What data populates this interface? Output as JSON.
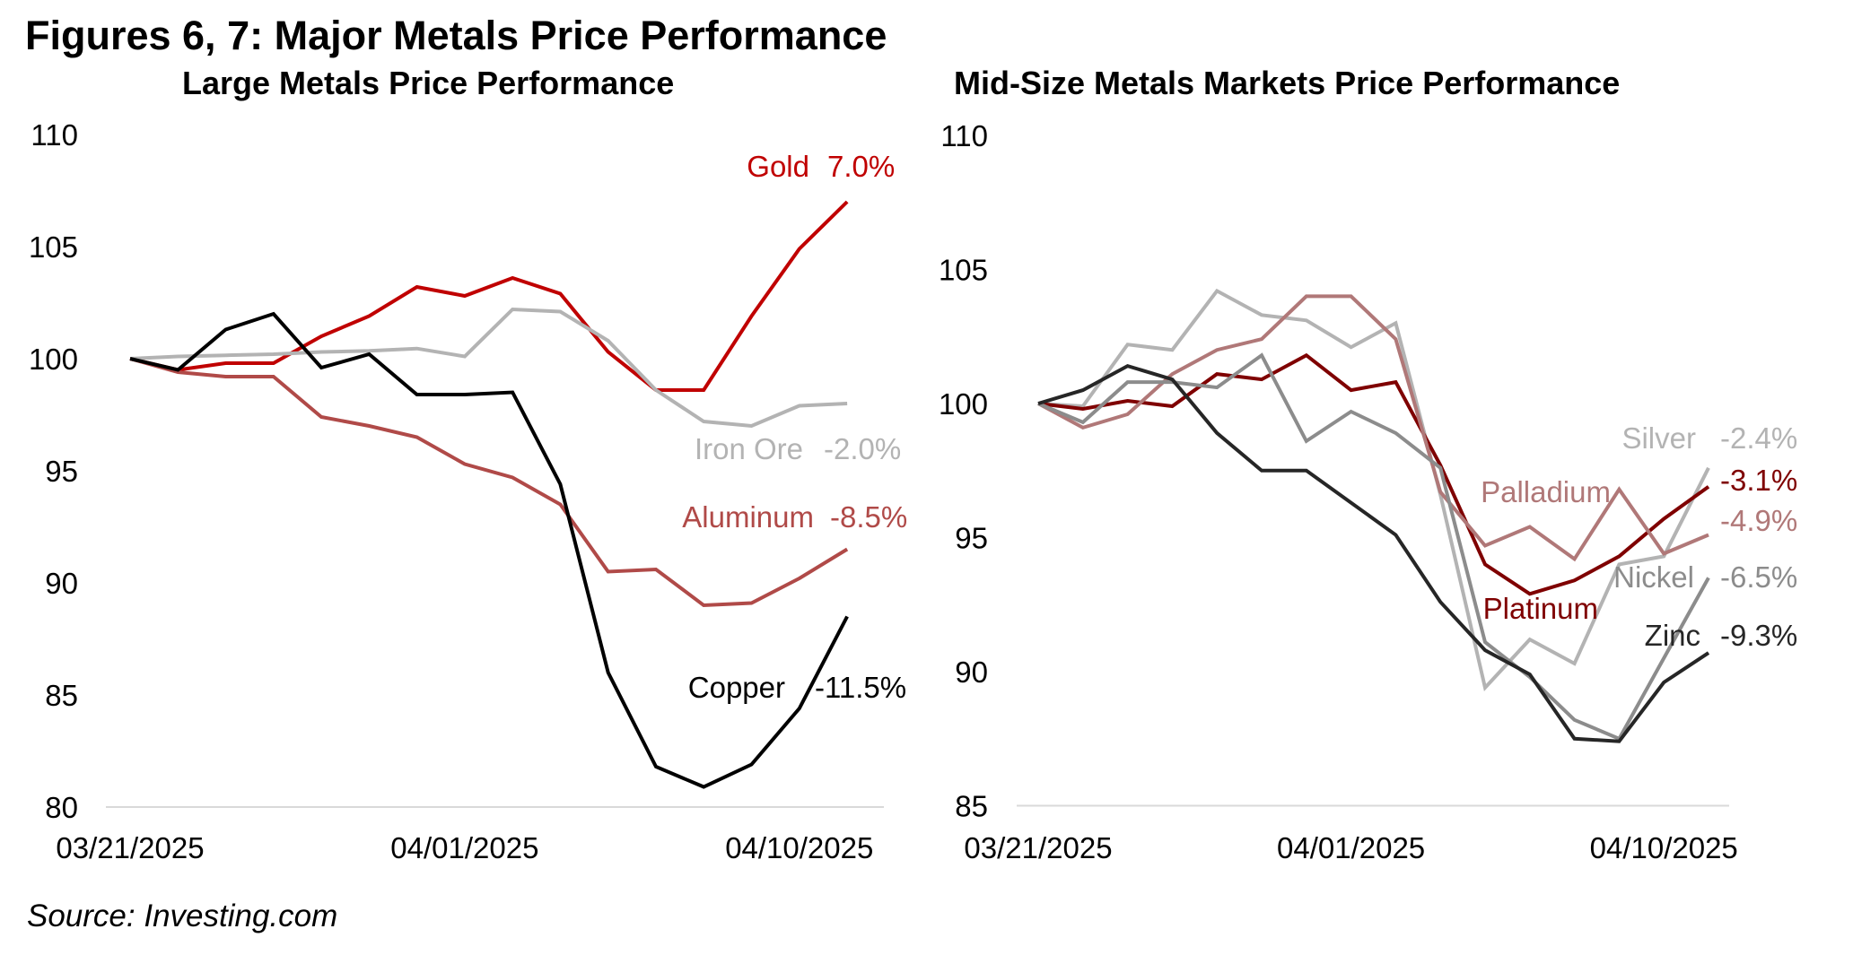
{
  "figure": {
    "title": "Figures 6, 7: Major Metals Price Performance",
    "source": "Source: Investing.com"
  },
  "chart_data": [
    {
      "type": "line",
      "title": "Large Metals Price Performance",
      "xlabel": "",
      "ylabel": "",
      "ylim": [
        80,
        110
      ],
      "yticks": [
        "80",
        "85",
        "90",
        "95",
        "100",
        "105",
        "110"
      ],
      "ytick_values": [
        80,
        85,
        90,
        95,
        100,
        105,
        110
      ],
      "x": [
        "03/21/2025",
        "03/24/2025",
        "03/25/2025",
        "03/26/2025",
        "03/27/2025",
        "03/28/2025",
        "03/31/2025",
        "04/01/2025",
        "04/02/2025",
        "04/03/2025",
        "04/04/2025",
        "04/07/2025",
        "04/08/2025",
        "04/09/2025",
        "04/10/2025",
        "04/11/2025"
      ],
      "xtick_labels": [
        "03/21/2025",
        "04/01/2025",
        "04/10/2025"
      ],
      "xtick_indices": [
        0,
        7,
        14
      ],
      "grid": false,
      "legend": "inline-labels-right",
      "series": [
        {
          "name": "Gold",
          "label": "Gold",
          "change": "7.0%",
          "color": "#c00000",
          "values": [
            100,
            99.5,
            99.8,
            99.8,
            101.0,
            101.9,
            103.2,
            102.8,
            103.6,
            102.9,
            100.3,
            98.6,
            98.6,
            101.9,
            104.9,
            107.0
          ]
        },
        {
          "name": "Iron Ore",
          "label": "Iron Ore",
          "change": "-2.0%",
          "color": "#b3b3b3",
          "values": [
            100,
            100.1,
            100.15,
            100.2,
            100.3,
            100.35,
            100.45,
            100.1,
            102.2,
            102.1,
            100.8,
            98.6,
            97.2,
            97.0,
            97.9,
            98.0
          ]
        },
        {
          "name": "Aluminum",
          "label": "Aluminum",
          "change": "-8.5%",
          "color": "#b04a48",
          "values": [
            100,
            99.4,
            99.2,
            99.2,
            97.4,
            97.0,
            96.5,
            95.3,
            94.7,
            93.5,
            90.5,
            90.6,
            89.0,
            89.1,
            90.2,
            91.5
          ]
        },
        {
          "name": "Copper",
          "label": "Copper",
          "change": "-11.5%",
          "color": "#000000",
          "values": [
            100,
            99.5,
            101.3,
            102.0,
            99.6,
            100.2,
            98.4,
            98.4,
            98.5,
            94.4,
            86.0,
            81.8,
            80.9,
            81.9,
            84.4,
            88.5
          ]
        }
      ]
    },
    {
      "type": "line",
      "title": "Mid-Size Metals Markets Price Performance",
      "xlabel": "",
      "ylabel": "",
      "ylim": [
        85,
        110
      ],
      "yticks": [
        "85",
        "90",
        "95",
        "100",
        "105",
        "110"
      ],
      "ytick_values": [
        85,
        90,
        95,
        100,
        105,
        110
      ],
      "x": [
        "03/21/2025",
        "03/24/2025",
        "03/25/2025",
        "03/26/2025",
        "03/27/2025",
        "03/28/2025",
        "03/31/2025",
        "04/01/2025",
        "04/02/2025",
        "04/03/2025",
        "04/04/2025",
        "04/07/2025",
        "04/08/2025",
        "04/09/2025",
        "04/10/2025",
        "04/11/2025"
      ],
      "xtick_labels": [
        "03/21/2025",
        "04/01/2025",
        "04/10/2025"
      ],
      "xtick_indices": [
        0,
        7,
        14
      ],
      "grid": false,
      "legend": "inline-labels-right",
      "series": [
        {
          "name": "Silver",
          "label": "Silver",
          "change": "-2.4%",
          "color": "#b3b3b3",
          "values": [
            100,
            99.9,
            102.2,
            102.0,
            104.2,
            103.3,
            103.1,
            102.1,
            103.0,
            96.6,
            89.4,
            91.2,
            90.3,
            94.0,
            94.3,
            97.6
          ]
        },
        {
          "name": "Platinum",
          "label": "Platinum",
          "change": "-3.1%",
          "color": "#7f0000",
          "values": [
            100,
            99.8,
            100.1,
            99.9,
            101.1,
            100.9,
            101.8,
            100.5,
            100.8,
            97.7,
            94.0,
            92.9,
            93.4,
            94.3,
            95.7,
            96.9
          ]
        },
        {
          "name": "Palladium",
          "label": "Palladium",
          "change": "-4.9%",
          "color": "#b07878",
          "values": [
            100,
            99.1,
            99.6,
            101.1,
            102.0,
            102.4,
            104.0,
            104.0,
            102.4,
            96.7,
            94.7,
            95.4,
            94.2,
            96.8,
            94.4,
            95.1
          ]
        },
        {
          "name": "Nickel",
          "label": "Nickel",
          "change": "-6.5%",
          "color": "#8c8c8c",
          "values": [
            100,
            99.3,
            100.8,
            100.8,
            100.6,
            101.8,
            98.6,
            99.7,
            98.9,
            97.6,
            91.1,
            89.8,
            88.2,
            87.5,
            90.5,
            93.5
          ]
        },
        {
          "name": "Zinc",
          "label": "Zinc",
          "change": "-9.3%",
          "color": "#262626",
          "values": [
            100,
            100.5,
            101.4,
            100.9,
            98.9,
            97.5,
            97.5,
            96.3,
            95.1,
            92.6,
            90.8,
            89.9,
            87.5,
            87.4,
            89.6,
            90.7
          ]
        }
      ]
    }
  ]
}
